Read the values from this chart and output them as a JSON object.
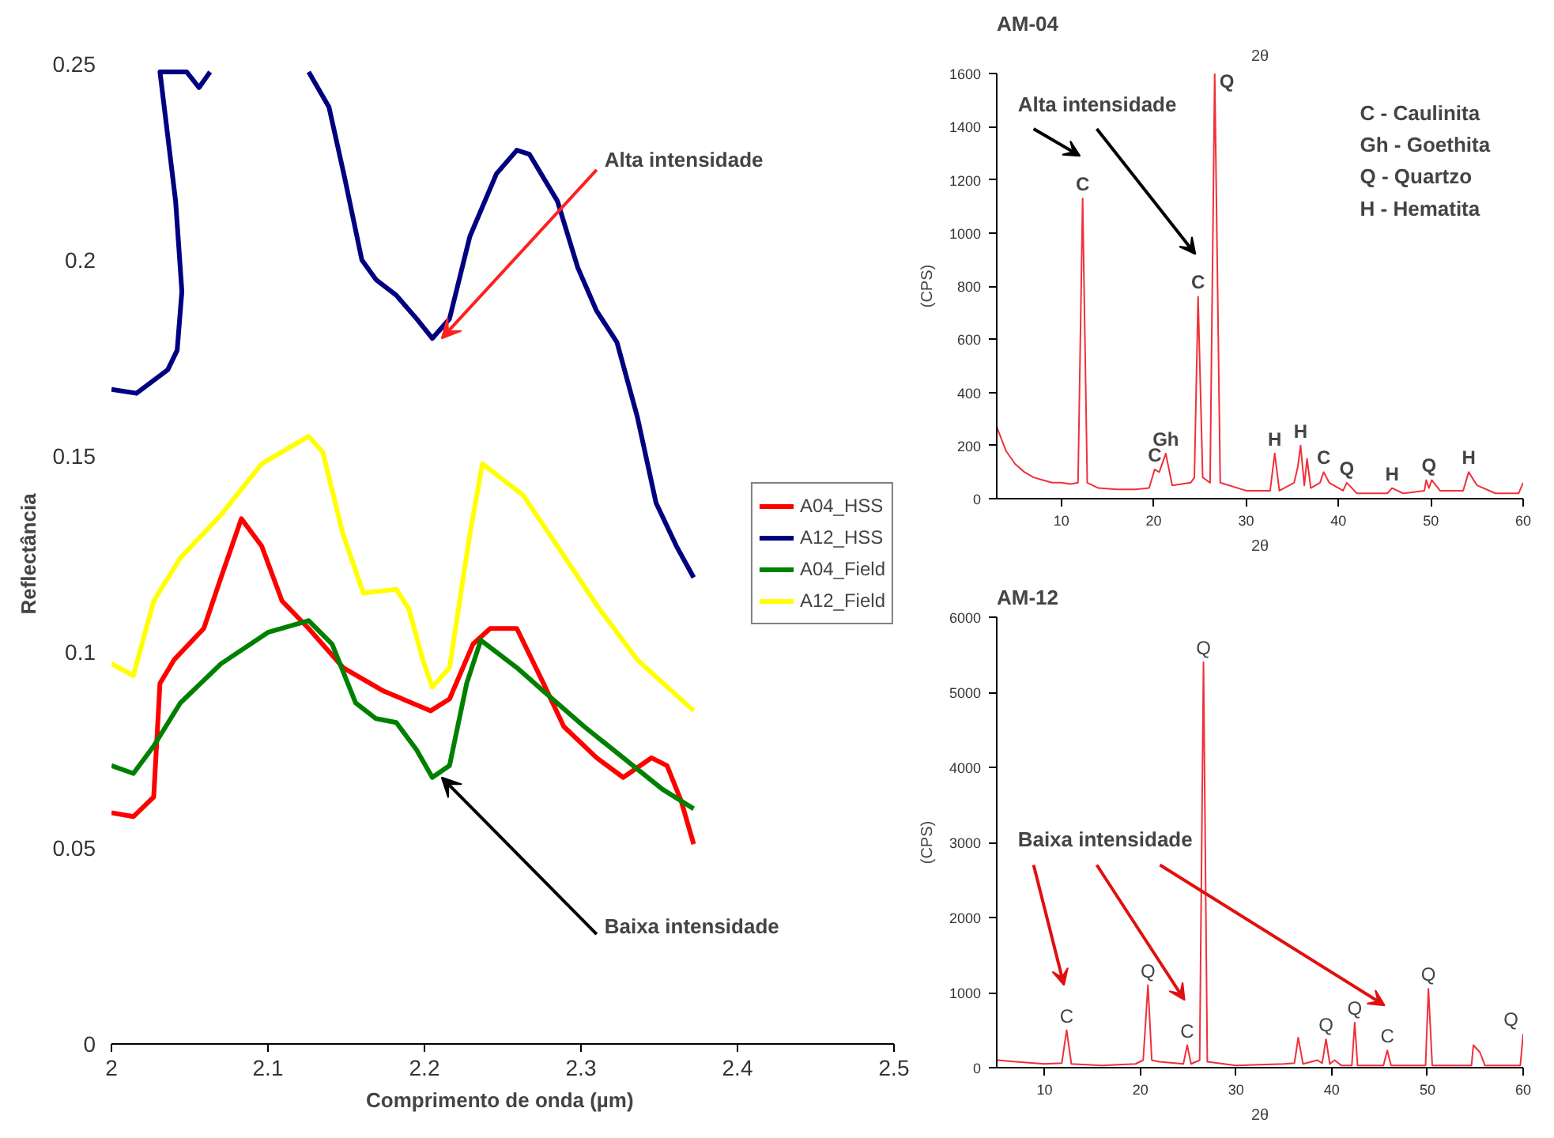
{
  "chart_data": [
    {
      "type": "line",
      "xlabel": "Comprimento de onda  (µm)",
      "ylabel": "Reflectância",
      "xlim": [
        2,
        2.5
      ],
      "ylim": [
        0,
        0.25
      ],
      "xticks": [
        2,
        2.1,
        2.2,
        2.3,
        2.4,
        2.5
      ],
      "yticks": [
        0,
        0.05,
        0.1,
        0.15,
        0.2,
        0.25
      ],
      "grid": false,
      "legend": "right",
      "marker": "none",
      "line_style": "solid",
      "annotations": [
        {
          "text": "Alta intensidade",
          "x": 2.205,
          "y": 0.18
        },
        {
          "text": "Baixa intensidade",
          "x": 2.205,
          "y": 0.068
        }
      ],
      "series": [
        {
          "name": "A04_HSS",
          "color": "#ff0000",
          "x": [
            2.0,
            2.014,
            2.027,
            2.031,
            2.04,
            2.059,
            2.07,
            2.083,
            2.096,
            2.109,
            2.126,
            2.148,
            2.174,
            2.204,
            2.216,
            2.231,
            2.242,
            2.259,
            2.276,
            2.289,
            2.31,
            2.327,
            2.345,
            2.355,
            2.364,
            2.372
          ],
          "values": [
            0.059,
            0.058,
            0.063,
            0.092,
            0.098,
            0.106,
            0.119,
            0.134,
            0.127,
            0.113,
            0.106,
            0.096,
            0.09,
            0.085,
            0.088,
            0.102,
            0.106,
            0.106,
            0.092,
            0.081,
            0.073,
            0.068,
            0.073,
            0.071,
            0.062,
            0.051
          ]
        },
        {
          "name": "A12_HSS",
          "color": "#000080",
          "x": [
            2.0,
            2.016,
            2.036,
            2.042,
            2.045,
            2.041,
            2.031,
            2.048,
            2.056,
            2.063,
            2.09,
            2.126,
            2.139,
            2.149,
            2.16,
            2.169,
            2.182,
            2.195,
            2.205,
            2.216,
            2.229,
            2.246,
            2.259,
            2.267,
            2.285,
            2.298,
            2.31,
            2.323,
            2.336,
            2.348,
            2.361,
            2.372
          ],
          "values": [
            0.167,
            0.166,
            0.172,
            0.177,
            0.192,
            0.215,
            0.248,
            0.248,
            0.244,
            0.248,
            null,
            0.248,
            0.239,
            0.221,
            0.2,
            0.195,
            0.191,
            0.185,
            0.18,
            0.185,
            0.206,
            0.222,
            0.228,
            0.227,
            0.215,
            0.198,
            0.187,
            0.179,
            0.16,
            0.138,
            0.127,
            0.119
          ]
        },
        {
          "name": "A04_Field",
          "color": "#008000",
          "x": [
            2.0,
            2.014,
            2.027,
            2.044,
            2.07,
            2.1,
            2.126,
            2.141,
            2.156,
            2.169,
            2.182,
            2.195,
            2.205,
            2.216,
            2.227,
            2.236,
            2.259,
            2.276,
            2.302,
            2.327,
            2.352,
            2.372
          ],
          "values": [
            0.071,
            0.069,
            0.076,
            0.087,
            0.097,
            0.105,
            0.108,
            0.102,
            0.087,
            0.083,
            0.082,
            0.075,
            0.068,
            0.071,
            0.092,
            0.103,
            0.096,
            0.09,
            0.081,
            0.073,
            0.065,
            0.06
          ]
        },
        {
          "name": "A12_Field",
          "color": "#ffff00",
          "x": [
            2.0,
            2.014,
            2.027,
            2.044,
            2.07,
            2.096,
            2.126,
            2.135,
            2.148,
            2.161,
            2.182,
            2.19,
            2.199,
            2.205,
            2.216,
            2.229,
            2.237,
            2.263,
            2.285,
            2.31,
            2.336,
            2.372
          ],
          "values": [
            0.097,
            0.094,
            0.113,
            0.124,
            0.135,
            0.148,
            0.155,
            0.151,
            0.13,
            0.115,
            0.116,
            0.111,
            0.098,
            0.091,
            0.096,
            0.13,
            0.148,
            0.14,
            0.127,
            0.112,
            0.098,
            0.085
          ]
        }
      ]
    },
    {
      "type": "line",
      "title": "AM-04",
      "xlabel": "2θ",
      "x2label": "2θ",
      "ylabel": "(CPS)",
      "xlim": [
        3,
        60
      ],
      "ylim": [
        0,
        1600
      ],
      "xticks": [
        10,
        20,
        30,
        40,
        50,
        60
      ],
      "yticks": [
        0,
        200,
        400,
        600,
        800,
        1000,
        1200,
        1400,
        1600
      ],
      "grid": false,
      "annotations": [
        "Alta intensidade",
        {
          "text": "C",
          "x": 12.3,
          "y": 1130
        },
        {
          "text": "C",
          "x": 20.1,
          "y": 110
        },
        {
          "text": "Gh",
          "x": 21.3,
          "y": 170
        },
        {
          "text": "C",
          "x": 24.8,
          "y": 760
        },
        {
          "text": "Q",
          "x": 26.6,
          "y": 1600
        },
        {
          "text": "H",
          "x": 33.1,
          "y": 170
        },
        {
          "text": "H",
          "x": 35.9,
          "y": 200
        },
        {
          "text": "C",
          "x": 38.4,
          "y": 100
        },
        {
          "text": "Q",
          "x": 40.9,
          "y": 60
        },
        {
          "text": "H",
          "x": 45.8,
          "y": 40
        },
        {
          "text": "Q",
          "x": 49.8,
          "y": 70
        },
        {
          "text": "H",
          "x": 54.1,
          "y": 100
        },
        "C - Caulinita",
        "Gh - Goethita",
        "Q - Quartzo",
        "H - Hematita"
      ],
      "series": [
        {
          "color": "#f0303a",
          "x": [
            3,
            4,
            5,
            6,
            7,
            8,
            9,
            10,
            11,
            11.8,
            12.3,
            12.8,
            14,
            16,
            18,
            19.5,
            20.1,
            20.6,
            21.3,
            22,
            24,
            24.4,
            24.8,
            25.3,
            26.1,
            26.6,
            27.2,
            30,
            32.6,
            33.1,
            33.6,
            35.2,
            35.6,
            35.9,
            36.3,
            36.6,
            37,
            38,
            38.4,
            39,
            40.5,
            40.9,
            42,
            45.3,
            45.8,
            47,
            49.3,
            49.5,
            49.8,
            50.1,
            51,
            53.5,
            54.1,
            55,
            57,
            59.5,
            60
          ],
          "values": [
            270,
            180,
            130,
            100,
            80,
            70,
            60,
            60,
            55,
            60,
            1130,
            60,
            40,
            35,
            35,
            40,
            110,
            100,
            170,
            50,
            60,
            80,
            760,
            80,
            60,
            1600,
            60,
            30,
            30,
            170,
            30,
            60,
            120,
            200,
            50,
            150,
            40,
            60,
            100,
            60,
            30,
            60,
            20,
            20,
            40,
            20,
            30,
            70,
            40,
            70,
            30,
            30,
            100,
            50,
            20,
            20,
            60
          ]
        }
      ]
    },
    {
      "type": "line",
      "title": "AM-12",
      "xlabel": "2θ",
      "ylabel": "(CPS)",
      "xlim": [
        5,
        60
      ],
      "ylim": [
        0,
        6000
      ],
      "xticks": [
        10,
        20,
        30,
        40,
        50,
        60
      ],
      "yticks": [
        0,
        1000,
        2000,
        3000,
        4000,
        5000,
        6000
      ],
      "grid": false,
      "annotations": [
        "Baixa intensidade",
        {
          "text": "C",
          "x": 12.3,
          "y": 500
        },
        {
          "text": "Q",
          "x": 20.8,
          "y": 1100
        },
        {
          "text": "C",
          "x": 24.9,
          "y": 300
        },
        {
          "text": "Q",
          "x": 26.6,
          "y": 5400
        },
        {
          "text": "Q",
          "x": 39.4,
          "y": 380
        },
        {
          "text": "Q",
          "x": 42.4,
          "y": 600
        },
        {
          "text": "C",
          "x": 45.8,
          "y": 230
        },
        {
          "text": "Q",
          "x": 50.1,
          "y": 1050
        },
        {
          "text": "Q",
          "x": 60,
          "y": 450
        }
      ],
      "series": [
        {
          "color": "#f0303a",
          "x": [
            5,
            7,
            10,
            11.8,
            12.3,
            12.8,
            16,
            19.5,
            20.3,
            20.8,
            21.2,
            22,
            24.5,
            24.9,
            25.3,
            26.2,
            26.6,
            27,
            30,
            35,
            36.1,
            36.5,
            37,
            38.5,
            39,
            39.4,
            39.8,
            40.3,
            41,
            42.1,
            42.4,
            42.7,
            45.4,
            45.8,
            46.2,
            49.8,
            50.1,
            50.5,
            54.6,
            54.8,
            55.5,
            56,
            59.7,
            60
          ],
          "values": [
            100,
            80,
            50,
            60,
            500,
            50,
            30,
            50,
            100,
            1100,
            100,
            80,
            50,
            300,
            50,
            100,
            5400,
            80,
            30,
            50,
            60,
            400,
            50,
            100,
            60,
            380,
            50,
            100,
            30,
            30,
            600,
            30,
            30,
            230,
            30,
            30,
            1050,
            30,
            30,
            300,
            200,
            30,
            30,
            450
          ]
        }
      ]
    }
  ]
}
